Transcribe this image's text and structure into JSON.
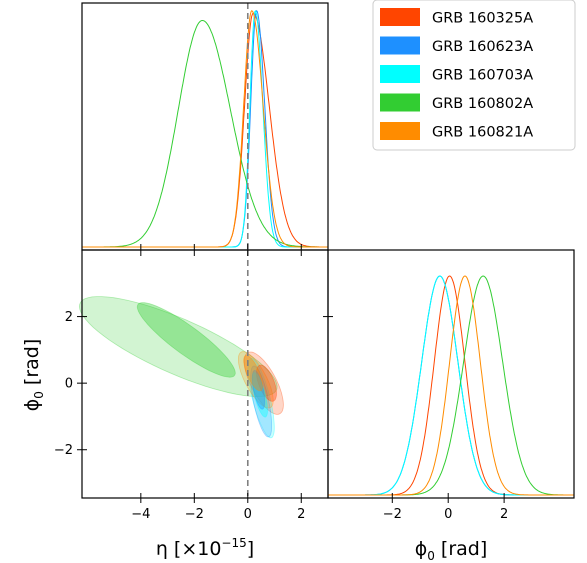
{
  "chart_data": {
    "type": "corner",
    "colors": {
      "GRB 160325A": "#ff4500",
      "GRB 160623A": "#1e90ff",
      "GRB 160703A": "#00ffff",
      "GRB 160802A": "#32cd32",
      "GRB 160821A": "#ff8c00"
    },
    "legend": {
      "position": "top-right",
      "entries": [
        "GRB 160325A",
        "GRB 160623A",
        "GRB 160703A",
        "GRB 160802A",
        "GRB 160821A"
      ]
    },
    "axes": {
      "eta": {
        "label_main": "η [×10",
        "label_exp": "−15",
        "label_end": "]",
        "range": [
          -6.2,
          3.0
        ],
        "ticks": [
          -4,
          -2,
          0,
          2
        ],
        "tick_labels": [
          "−4",
          "−2",
          "0",
          "2"
        ],
        "reference_line": 0
      },
      "phi0": {
        "label_main": "ϕ",
        "label_sub": "0",
        "label_end": " [rad]",
        "range": [
          -3.45,
          4.0
        ],
        "ticks": [
          -2,
          0,
          2
        ],
        "tick_labels": [
          "−2",
          "0",
          "2"
        ]
      },
      "phi0_marginal": {
        "range": [
          -4.3,
          4.5
        ],
        "ticks": [
          -2,
          0,
          2
        ],
        "tick_labels": [
          "−2",
          "0",
          "2"
        ]
      }
    },
    "marginal_eta": [
      {
        "name": "GRB 160325A",
        "peak": 0.2,
        "width_left": 0.32,
        "width_right": 0.6,
        "height": 0.97
      },
      {
        "name": "GRB 160623A",
        "peak": 0.33,
        "width_left": 0.22,
        "width_right": 0.3,
        "height": 0.98
      },
      {
        "name": "GRB 160703A",
        "peak": 0.28,
        "width_left": 0.2,
        "width_right": 0.28,
        "height": 0.98
      },
      {
        "name": "GRB 160802A",
        "peak": -1.7,
        "width_left": 0.9,
        "width_right": 1.05,
        "height": 0.94
      },
      {
        "name": "GRB 160821A",
        "peak": 0.15,
        "width_left": 0.3,
        "width_right": 0.42,
        "height": 0.98
      }
    ],
    "marginal_phi0": [
      {
        "name": "GRB 160325A",
        "mean": 0.05,
        "sd": 0.55
      },
      {
        "name": "GRB 160623A",
        "mean": -0.3,
        "sd": 0.65
      },
      {
        "name": "GRB 160703A",
        "mean": -0.3,
        "sd": 0.65
      },
      {
        "name": "GRB 160802A",
        "mean": 1.25,
        "sd": 0.7
      },
      {
        "name": "GRB 160821A",
        "mean": 0.6,
        "sd": 0.55
      }
    ],
    "contours_2d": [
      {
        "name": "GRB 160802A",
        "inner": {
          "cx": -2.3,
          "cy": 1.3,
          "rx": 2.1,
          "ry": 0.45,
          "angle": -30
        },
        "outer": {
          "cx": -2.6,
          "cy": 1.1,
          "rx": 3.9,
          "ry": 0.85,
          "angle": -19
        }
      },
      {
        "name": "GRB 160325A",
        "inner": {
          "cx": 0.7,
          "cy": 0.0,
          "rx": 0.6,
          "ry": 0.28,
          "angle": -62
        },
        "outer": {
          "cx": 0.6,
          "cy": 0.0,
          "rx": 1.1,
          "ry": 0.45,
          "angle": -55
        }
      },
      {
        "name": "GRB 160703A",
        "inner": {
          "cx": 0.45,
          "cy": -0.35,
          "rx": 0.7,
          "ry": 0.2,
          "angle": -72
        },
        "outer": {
          "cx": 0.5,
          "cy": -0.45,
          "rx": 1.25,
          "ry": 0.32,
          "angle": -72
        }
      },
      {
        "name": "GRB 160623A",
        "inner": {
          "cx": 0.4,
          "cy": -0.2,
          "rx": 0.6,
          "ry": 0.18,
          "angle": -75
        },
        "outer": {
          "cx": 0.5,
          "cy": -0.55,
          "rx": 1.1,
          "ry": 0.28,
          "angle": -75
        }
      },
      {
        "name": "GRB 160821A",
        "inner": {
          "cx": 0.2,
          "cy": 0.3,
          "rx": 0.6,
          "ry": 0.22,
          "angle": -60
        },
        "outer": {
          "cx": 0.3,
          "cy": 0.1,
          "rx": 1.0,
          "ry": 0.38,
          "angle": -55
        }
      }
    ]
  }
}
